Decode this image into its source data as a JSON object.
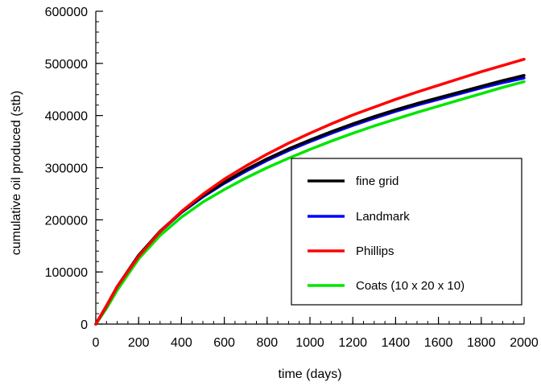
{
  "chart_data": {
    "type": "line",
    "title": "",
    "xlabel": "time (days)",
    "ylabel": "cumulative oil produced (stb)",
    "xlim": [
      0,
      2000
    ],
    "ylim": [
      0,
      600000
    ],
    "x_ticks": [
      0,
      200,
      400,
      600,
      800,
      1000,
      1200,
      1400,
      1600,
      1800,
      2000
    ],
    "y_ticks": [
      0,
      100000,
      200000,
      300000,
      400000,
      500000,
      600000
    ],
    "x_tick_labels": [
      "0",
      "200",
      "400",
      "600",
      "800",
      "1000",
      "1200",
      "1400",
      "1600",
      "1800",
      "2000"
    ],
    "y_tick_labels": [
      "0",
      "100000",
      "200000",
      "300000",
      "400000",
      "500000",
      "600000"
    ],
    "grid": false,
    "legend_position": "lower-right",
    "x": [
      0,
      50,
      100,
      200,
      300,
      400,
      500,
      600,
      700,
      800,
      900,
      1000,
      1100,
      1200,
      1300,
      1400,
      1500,
      1600,
      1700,
      1800,
      1900,
      2000
    ],
    "series": [
      {
        "name": "fine grid",
        "color": "#000000",
        "values": [
          0,
          35000,
          72000,
          132000,
          178000,
          215000,
          246000,
          272000,
          296000,
          317000,
          336000,
          353000,
          369000,
          384000,
          398000,
          411000,
          423000,
          434000,
          445000,
          456000,
          467000,
          477000
        ]
      },
      {
        "name": "Landmark",
        "color": "#0000ff",
        "values": [
          0,
          35000,
          72000,
          131000,
          177000,
          214000,
          244000,
          270000,
          293000,
          314000,
          333000,
          350000,
          366000,
          381000,
          395000,
          408000,
          420000,
          431000,
          442000,
          453000,
          463000,
          472000
        ]
      },
      {
        "name": "Phillips",
        "color": "#ff0000",
        "values": [
          0,
          35000,
          72000,
          130000,
          177000,
          216000,
          249000,
          278000,
          303000,
          326000,
          347000,
          366000,
          384000,
          401000,
          416000,
          431000,
          445000,
          458000,
          471000,
          484000,
          496000,
          508000
        ]
      },
      {
        "name": "Coats (10 x 20 x 10)",
        "color": "#00e600",
        "values": [
          0,
          30000,
          65000,
          125000,
          170000,
          205000,
          234000,
          258000,
          280000,
          300000,
          318000,
          335000,
          351000,
          366000,
          380000,
          393000,
          406000,
          418000,
          430000,
          442000,
          454000,
          465000
        ]
      }
    ]
  }
}
